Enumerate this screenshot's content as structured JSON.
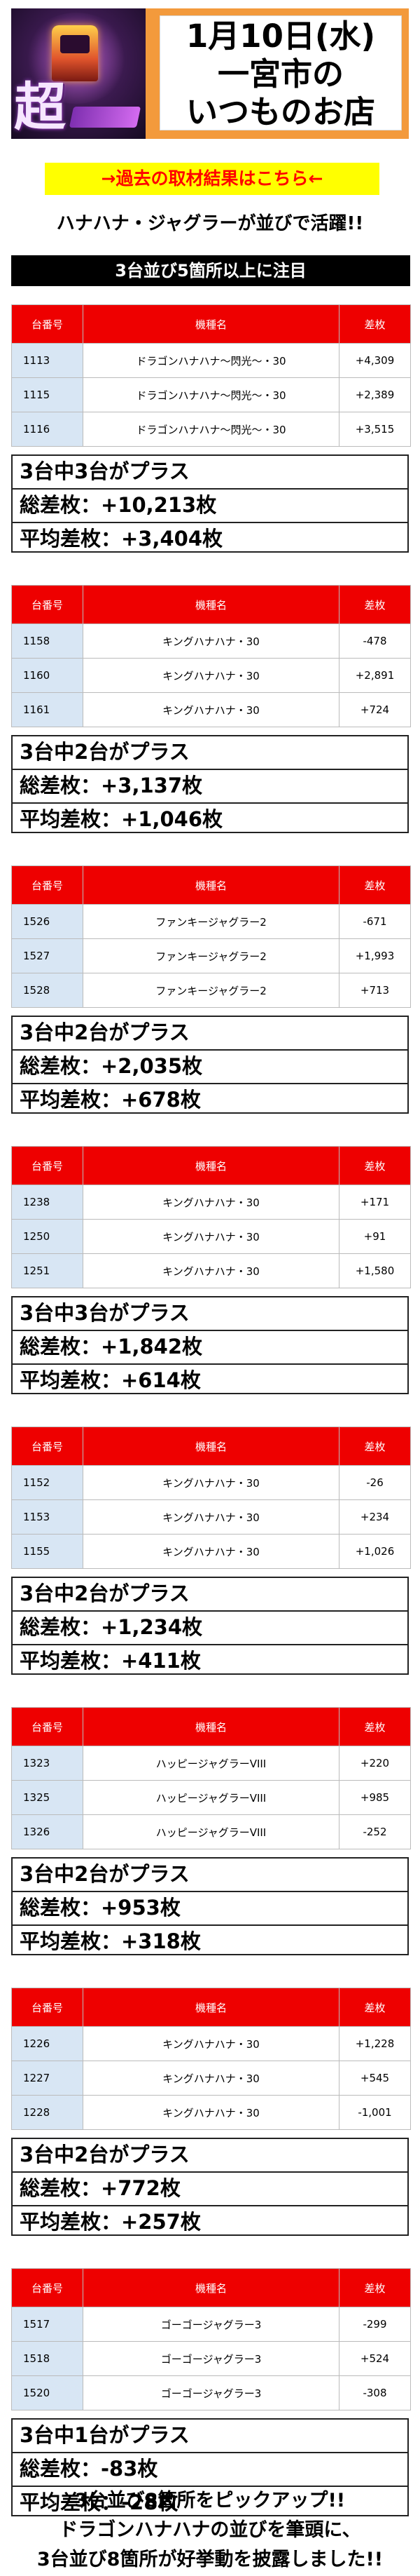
{
  "header": {
    "date": "1月10日(水)",
    "city": "一宮市の",
    "store": "いつものお店",
    "logo_icon": "chou-event-logo-icon",
    "logo_text": "超"
  },
  "past_link": "→過去の取材結果はこちら←",
  "headline": "ハナハナ・ジャグラーが並びで活躍!!",
  "section_title": "3台並び5箇所以上に注目",
  "columns": {
    "num": "台番号",
    "name": "機種名",
    "diff": "差枚"
  },
  "groups": [
    {
      "rows": [
        {
          "num": "1113",
          "name": "ドラゴンハナハナ〜閃光〜・30",
          "diff": "+4,309"
        },
        {
          "num": "1115",
          "name": "ドラゴンハナハナ〜閃光〜・30",
          "diff": "+2,389"
        },
        {
          "num": "1116",
          "name": "ドラゴンハナハナ〜閃光〜・30",
          "diff": "+3,515"
        }
      ],
      "summary_title": "3台中3台がプラス",
      "total": "総差枚：+10,213枚",
      "average": "平均差枚：+3,404枚"
    },
    {
      "rows": [
        {
          "num": "1158",
          "name": "キングハナハナ・30",
          "diff": "-478"
        },
        {
          "num": "1160",
          "name": "キングハナハナ・30",
          "diff": "+2,891"
        },
        {
          "num": "1161",
          "name": "キングハナハナ・30",
          "diff": "+724"
        }
      ],
      "summary_title": "3台中2台がプラス",
      "total": "総差枚：+3,137枚",
      "average": "平均差枚：+1,046枚"
    },
    {
      "rows": [
        {
          "num": "1526",
          "name": "ファンキージャグラー2",
          "diff": "-671"
        },
        {
          "num": "1527",
          "name": "ファンキージャグラー2",
          "diff": "+1,993"
        },
        {
          "num": "1528",
          "name": "ファンキージャグラー2",
          "diff": "+713"
        }
      ],
      "summary_title": "3台中2台がプラス",
      "total": "総差枚：+2,035枚",
      "average": "平均差枚：+678枚"
    },
    {
      "rows": [
        {
          "num": "1238",
          "name": "キングハナハナ・30",
          "diff": "+171"
        },
        {
          "num": "1250",
          "name": "キングハナハナ・30",
          "diff": "+91"
        },
        {
          "num": "1251",
          "name": "キングハナハナ・30",
          "diff": "+1,580"
        }
      ],
      "summary_title": "3台中3台がプラス",
      "total": "総差枚：+1,842枚",
      "average": "平均差枚：+614枚"
    },
    {
      "rows": [
        {
          "num": "1152",
          "name": "キングハナハナ・30",
          "diff": "-26"
        },
        {
          "num": "1153",
          "name": "キングハナハナ・30",
          "diff": "+234"
        },
        {
          "num": "1155",
          "name": "キングハナハナ・30",
          "diff": "+1,026"
        }
      ],
      "summary_title": "3台中2台がプラス",
      "total": "総差枚：+1,234枚",
      "average": "平均差枚：+411枚"
    },
    {
      "rows": [
        {
          "num": "1323",
          "name": "ハッピージャグラーVIII",
          "diff": "+220"
        },
        {
          "num": "1325",
          "name": "ハッピージャグラーVIII",
          "diff": "+985"
        },
        {
          "num": "1326",
          "name": "ハッピージャグラーVIII",
          "diff": "-252"
        }
      ],
      "summary_title": "3台中2台がプラス",
      "total": "総差枚：+953枚",
      "average": "平均差枚：+318枚"
    },
    {
      "rows": [
        {
          "num": "1226",
          "name": "キングハナハナ・30",
          "diff": "+1,228"
        },
        {
          "num": "1227",
          "name": "キングハナハナ・30",
          "diff": "+545"
        },
        {
          "num": "1228",
          "name": "キングハナハナ・30",
          "diff": "-1,001"
        }
      ],
      "summary_title": "3台中2台がプラス",
      "total": "総差枚：+772枚",
      "average": "平均差枚：+257枚"
    },
    {
      "rows": [
        {
          "num": "1517",
          "name": "ゴーゴージャグラー3",
          "diff": "-299"
        },
        {
          "num": "1518",
          "name": "ゴーゴージャグラー3",
          "diff": "+524"
        },
        {
          "num": "1520",
          "name": "ゴーゴージャグラー3",
          "diff": "-308"
        }
      ],
      "summary_title": "3台中1台がプラス",
      "total": "総差枚：-83枚",
      "average": "平均差枚：-28枚"
    }
  ],
  "closing": [
    "3台並び8箇所をピックアップ!!",
    "ドラゴンハナハナの並びを筆頭に、",
    "3台並び8箇所が好挙動を披露しました!!"
  ]
}
